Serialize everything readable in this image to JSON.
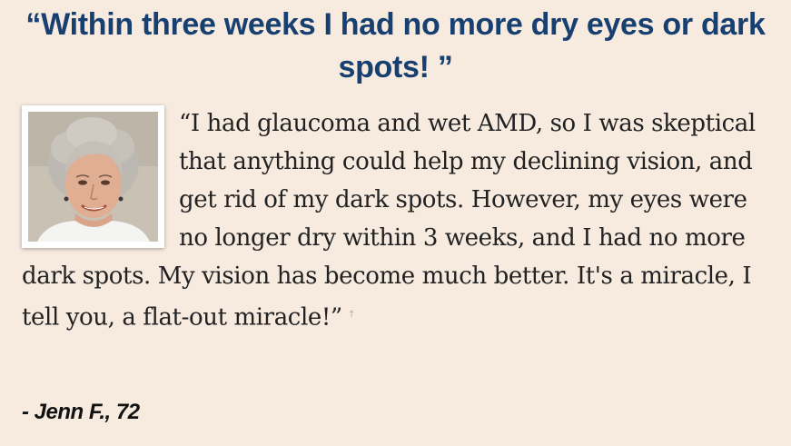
{
  "testimonial": {
    "headline": "“Within three weeks I had no more dry eyes or dark spots! ”",
    "quote": "“I had glaucoma and wet AMD, so I was skeptical that anything could help my declining vision, and get rid of my dark spots. However, my eyes were no longer dry within 3 weeks, and I had no more dark spots. My vision has become much better. It's a miracle, I tell you, a flat-out miracle!”",
    "footnote_mark": "†",
    "attribution": "- Jenn F., 72",
    "photo_icon": "customer-portrait"
  },
  "colors": {
    "background": "#f7ebe0",
    "headline": "#173f70",
    "body_text": "#222222"
  }
}
